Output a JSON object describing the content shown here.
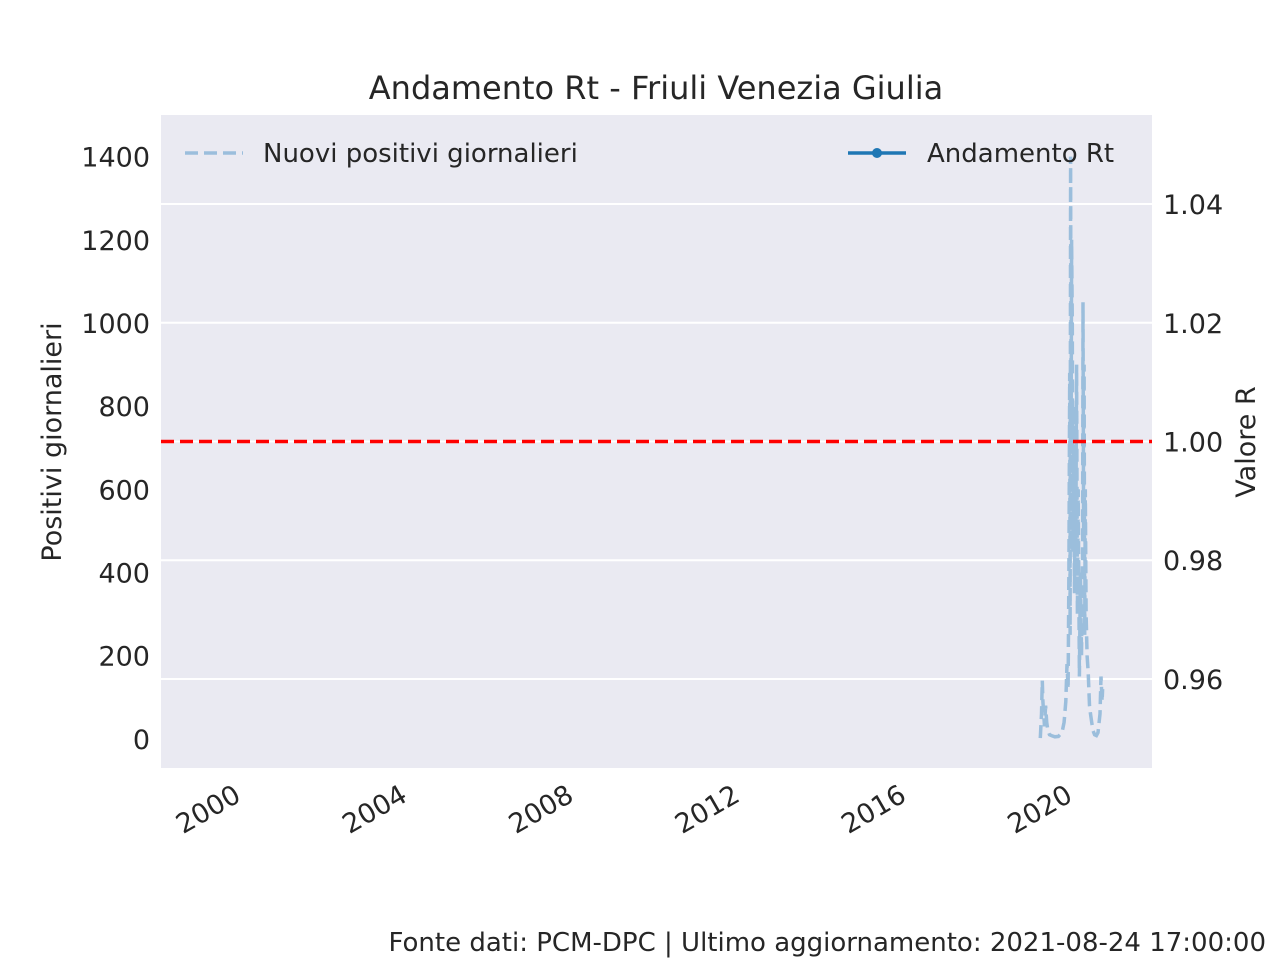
{
  "chart_data": {
    "type": "line",
    "title": "Andamento Rt - Friuli Venezia Giulia",
    "ylabel_left": "Positivi giornalieri",
    "ylabel_right": "Valore R",
    "xlabel": "",
    "x_ticks": [
      "2000",
      "2004",
      "2008",
      "2012",
      "2016",
      "2020"
    ],
    "y_left_ticks": [
      "0",
      "200",
      "400",
      "600",
      "800",
      "1000",
      "1200",
      "1400"
    ],
    "y_right_ticks": [
      "0.96",
      "0.98",
      "1.00",
      "1.02",
      "1.04"
    ],
    "xlim": [
      "1999-01-01",
      "2022-11-01"
    ],
    "ylim_left": [
      -70,
      1500
    ],
    "ylim_right": [
      0.945,
      1.055
    ],
    "reference_line": {
      "axis": "right",
      "value": 1.0,
      "color": "#ff0000",
      "style": "dashed"
    },
    "legend_left": "top-left",
    "legend_right": "top-right",
    "grid": true,
    "series": [
      {
        "name": "Nuovi positivi giornalieri",
        "axis": "left",
        "style": "dashed",
        "color": "#9bbedc",
        "x": [
          "2020-02-24",
          "2020-03-05",
          "2020-03-12",
          "2020-03-18",
          "2020-03-25",
          "2020-04-01",
          "2020-04-10",
          "2020-04-20",
          "2020-05-01",
          "2020-05-15",
          "2020-06-01",
          "2020-07-01",
          "2020-08-01",
          "2020-09-01",
          "2020-09-20",
          "2020-10-05",
          "2020-10-15",
          "2020-10-25",
          "2020-11-01",
          "2020-11-08",
          "2020-11-12",
          "2020-11-16",
          "2020-11-20",
          "2020-11-25",
          "2020-12-01",
          "2020-12-05",
          "2020-12-10",
          "2020-12-15",
          "2020-12-20",
          "2020-12-25",
          "2021-01-01",
          "2021-01-08",
          "2021-01-15",
          "2021-01-22",
          "2021-02-01",
          "2021-02-10",
          "2021-02-20",
          "2021-03-01",
          "2021-03-05",
          "2021-03-10",
          "2021-03-15",
          "2021-03-20",
          "2021-03-25",
          "2021-04-01",
          "2021-04-10",
          "2021-04-20",
          "2021-05-01",
          "2021-05-10",
          "2021-05-20",
          "2021-06-01",
          "2021-06-15",
          "2021-07-01",
          "2021-07-15",
          "2021-08-01",
          "2021-08-10",
          "2021-08-20",
          "2021-08-24"
        ],
        "values": [
          2,
          60,
          140,
          90,
          60,
          30,
          80,
          40,
          20,
          10,
          8,
          5,
          6,
          15,
          40,
          90,
          180,
          120,
          400,
          880,
          250,
          1400,
          700,
          1200,
          1000,
          450,
          800,
          600,
          350,
          700,
          450,
          900,
          300,
          600,
          150,
          400,
          200,
          450,
          1050,
          500,
          900,
          250,
          600,
          300,
          200,
          160,
          80,
          60,
          40,
          20,
          10,
          8,
          15,
          60,
          150,
          90,
          120
        ]
      },
      {
        "name": "Andamento Rt",
        "axis": "right",
        "style": "solid-marker",
        "color": "#1f77b4",
        "x": [],
        "values": []
      }
    ]
  },
  "footer": "Fonte dati: PCM-DPC | Ultimo aggiornamento: 2021-08-24 17:00:00"
}
